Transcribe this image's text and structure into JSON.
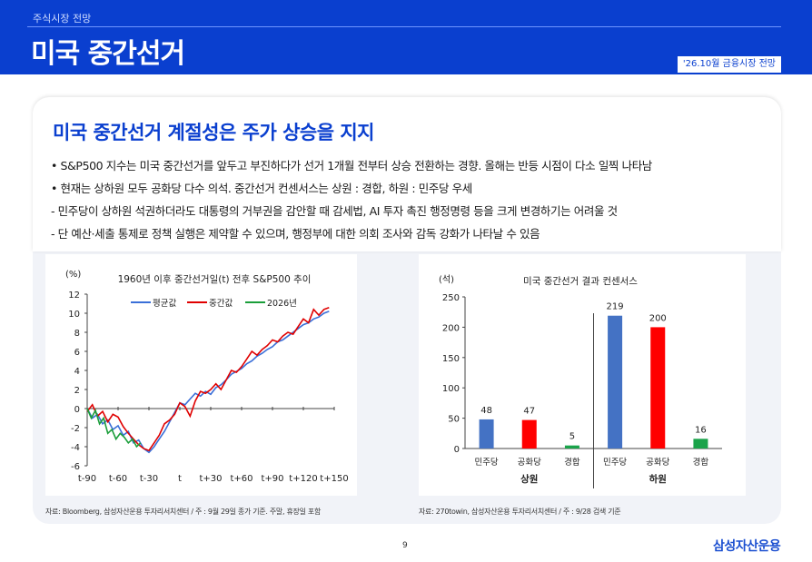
{
  "header": {
    "section": "주식시장 전망",
    "title": "미국 중간선거",
    "report_tag": "'26.10월 금융시장 전망"
  },
  "headline": "미국 중간선거 계절성은 주가 상승을 지지",
  "bullets": [
    "• S&P500 지수는 미국 중간선거를 앞두고 부진하다가 선거 1개월 전부터 상승 전환하는 경향. 올해는 반등 시점이 다소 일찍 나타남",
    "• 현재는 상하원 모두 공화당 다수 의석. 중간선거 컨센서스는 상원 : 경합, 하원 : 민주당 우세",
    " - 민주당이 상하원 석권하더라도 대통령의 거부권을 감안할 때 감세법, AI 투자 촉진 행정명령 등을 크게 변경하기는 어려울 것",
    " - 단 예산·세출 통제로 정책 실행은 제약할 수 있으며, 행정부에 대한 의회 조사와 감독 강화가 나타날 수 있음"
  ],
  "chart_data": [
    {
      "type": "line",
      "title": "1960년 이후 중간선거일(t) 전후 S&P500 추이",
      "unit": "(%)",
      "ylim": [
        -6,
        12
      ],
      "yticks": [
        -6,
        -4,
        -2,
        0,
        2,
        4,
        6,
        8,
        10,
        12
      ],
      "xlim": [
        -90,
        150
      ],
      "xticks": [
        -90,
        -60,
        -30,
        0,
        30,
        60,
        90,
        120,
        150
      ],
      "xtick_labels": [
        "t-90",
        "t-60",
        "t-30",
        "t",
        "t+30",
        "t+60",
        "t+90",
        "t+120",
        "t+150"
      ],
      "grid": false,
      "legend": "top-center",
      "series": [
        {
          "name": "평균값",
          "color": "#3a6fd8",
          "x": [
            -90,
            -85,
            -80,
            -75,
            -70,
            -65,
            -60,
            -55,
            -50,
            -45,
            -40,
            -35,
            -30,
            -25,
            -20,
            -15,
            -10,
            -5,
            0,
            5,
            10,
            15,
            20,
            25,
            30,
            35,
            40,
            45,
            50,
            55,
            60,
            65,
            70,
            75,
            80,
            85,
            90,
            95,
            100,
            105,
            110,
            115,
            120,
            125,
            130,
            135,
            140,
            145
          ],
          "y": [
            0.0,
            -1.0,
            -0.6,
            -1.6,
            -1.2,
            -2.2,
            -1.8,
            -2.8,
            -2.4,
            -3.6,
            -3.3,
            -4.2,
            -4.6,
            -4.0,
            -3.2,
            -2.4,
            -1.4,
            -0.4,
            0.6,
            0.4,
            1.0,
            1.6,
            1.3,
            1.8,
            1.5,
            2.2,
            2.5,
            3.0,
            3.6,
            3.9,
            4.2,
            4.7,
            5.0,
            5.5,
            5.8,
            6.2,
            6.5,
            7.0,
            7.2,
            7.6,
            8.0,
            8.4,
            8.8,
            9.0,
            9.4,
            9.6,
            10.0,
            10.2
          ]
        },
        {
          "name": "중간값",
          "color": "#e00000",
          "x": [
            -90,
            -85,
            -80,
            -75,
            -70,
            -65,
            -60,
            -55,
            -50,
            -45,
            -40,
            -35,
            -30,
            -25,
            -20,
            -15,
            -10,
            -5,
            0,
            5,
            10,
            15,
            20,
            25,
            30,
            35,
            40,
            45,
            50,
            55,
            60,
            65,
            70,
            75,
            80,
            85,
            90,
            95,
            100,
            105,
            110,
            115,
            120,
            125,
            130,
            135,
            140,
            145
          ],
          "y": [
            -0.3,
            0.4,
            -0.8,
            -0.3,
            -1.4,
            -0.6,
            -0.9,
            -1.9,
            -2.6,
            -3.2,
            -3.8,
            -4.2,
            -4.4,
            -3.6,
            -2.8,
            -1.6,
            -1.2,
            -0.6,
            0.6,
            0.2,
            -0.8,
            0.8,
            1.8,
            1.6,
            2.0,
            2.6,
            2.0,
            3.0,
            4.0,
            3.8,
            4.4,
            5.2,
            6.0,
            5.6,
            6.2,
            6.6,
            7.2,
            7.0,
            7.6,
            8.0,
            7.8,
            8.6,
            9.4,
            9.0,
            10.4,
            9.8,
            10.4,
            10.6
          ]
        },
        {
          "name": "2026년",
          "color": "#1a9e3a",
          "x": [
            -90,
            -86,
            -82,
            -78,
            -74,
            -70,
            -66,
            -62,
            -58,
            -54,
            -50,
            -46,
            -42,
            -38
          ],
          "y": [
            0.0,
            -1.0,
            -0.2,
            -1.6,
            -1.0,
            -2.6,
            -2.2,
            -3.2,
            -2.6,
            -3.0,
            -3.6,
            -3.2,
            -4.0,
            -3.6
          ]
        }
      ],
      "source": "자료: Bloomberg, 삼성자산운용 투자리서치센터 / 주 : 9월 29일 종가 기준. 주말, 휴장일 포함"
    },
    {
      "type": "bar",
      "title": "미국 중간선거 결과 컨센서스",
      "unit": "(석)",
      "ylim": [
        0,
        250
      ],
      "yticks": [
        0,
        50,
        100,
        150,
        200,
        250
      ],
      "categories": [
        "민주당",
        "공화당",
        "경합",
        "민주당",
        "공화당",
        "경합"
      ],
      "groups": [
        {
          "label": "상원",
          "categories": [
            "민주당",
            "공화당",
            "경합"
          ],
          "values": [
            48,
            47,
            5
          ]
        },
        {
          "label": "하원",
          "categories": [
            "민주당",
            "공화당",
            "경합"
          ],
          "values": [
            219,
            200,
            16
          ]
        }
      ],
      "colors": {
        "민주당": "#4472c4",
        "공화당": "#ff0000",
        "경합": "#1aa34a"
      },
      "source": "자료: 270towin, 삼성자산운용 투자리서치센터 / 주 : 9/28 검색 기준"
    }
  ],
  "footer": {
    "page": "9",
    "brand": "삼성자산운용"
  }
}
